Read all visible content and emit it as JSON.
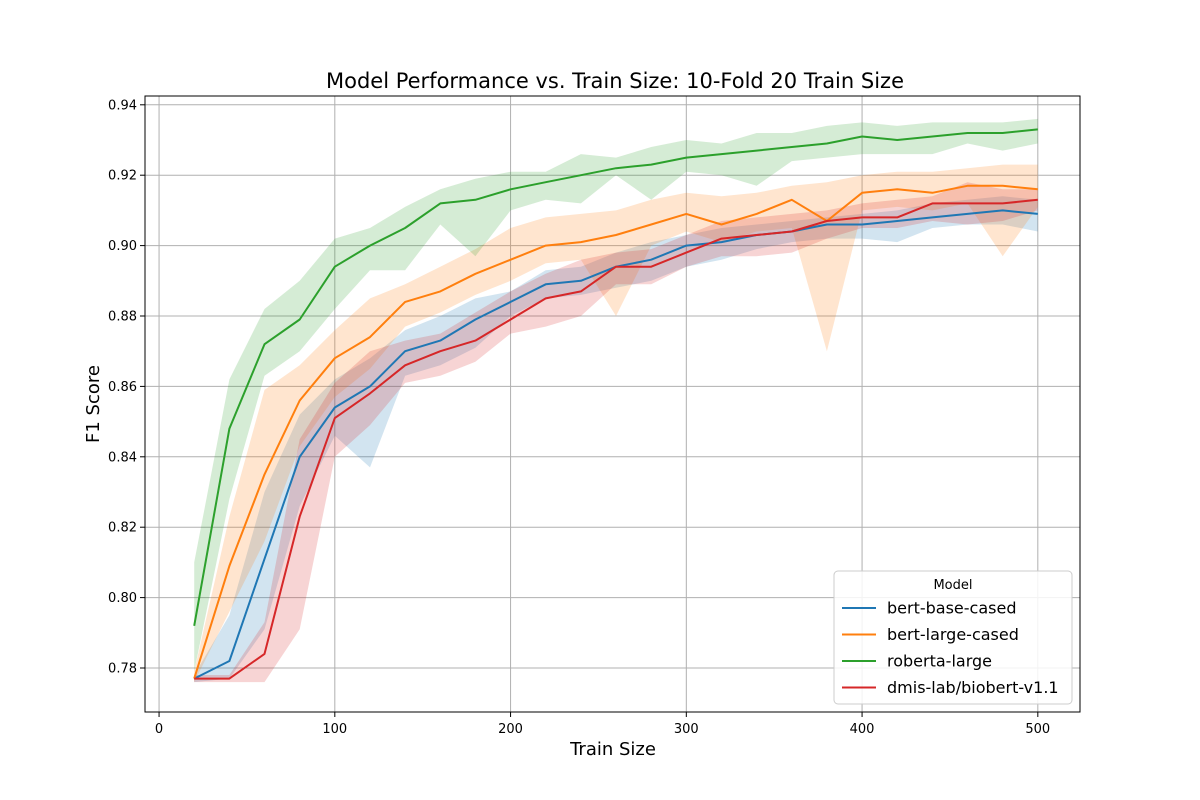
{
  "chart_data": {
    "type": "line",
    "title": "Model Performance vs. Train Size: 10-Fold 20 Train Size",
    "xlabel": "Train Size",
    "ylabel": "F1 Score",
    "xlim": [
      -8,
      524
    ],
    "ylim": [
      0.7675,
      0.9425
    ],
    "xticks": [
      0,
      100,
      200,
      300,
      400,
      500
    ],
    "yticks": [
      0.78,
      0.8,
      0.82,
      0.84,
      0.86,
      0.88,
      0.9,
      0.92,
      0.94
    ],
    "ytick_labels": [
      "0.78",
      "0.80",
      "0.82",
      "0.84",
      "0.86",
      "0.88",
      "0.90",
      "0.92",
      "0.94"
    ],
    "grid": true,
    "legend": {
      "title": "Model",
      "placement": "bottom-right"
    },
    "x": [
      20,
      40,
      60,
      80,
      100,
      120,
      140,
      160,
      180,
      200,
      220,
      240,
      260,
      280,
      300,
      320,
      340,
      360,
      380,
      400,
      420,
      440,
      460,
      480,
      500
    ],
    "series": [
      {
        "name": "bert-base-cased",
        "color": "#1f77b4",
        "values": [
          0.777,
          0.782,
          0.811,
          0.84,
          0.854,
          0.86,
          0.87,
          0.873,
          0.879,
          0.884,
          0.889,
          0.89,
          0.894,
          0.896,
          0.9,
          0.901,
          0.903,
          0.904,
          0.906,
          0.906,
          0.907,
          0.908,
          0.909,
          0.91,
          0.909
        ],
        "lower": [
          0.776,
          0.777,
          0.791,
          0.826,
          0.846,
          0.837,
          0.863,
          0.866,
          0.871,
          0.88,
          0.885,
          0.886,
          0.888,
          0.89,
          0.894,
          0.896,
          0.899,
          0.901,
          0.902,
          0.902,
          0.901,
          0.905,
          0.906,
          0.906,
          0.904
        ],
        "upper": [
          0.778,
          0.795,
          0.83,
          0.852,
          0.862,
          0.868,
          0.876,
          0.88,
          0.885,
          0.887,
          0.893,
          0.894,
          0.898,
          0.901,
          0.903,
          0.905,
          0.906,
          0.907,
          0.908,
          0.909,
          0.91,
          0.912,
          0.913,
          0.914,
          0.913
        ]
      },
      {
        "name": "bert-large-cased",
        "color": "#ff7f0e",
        "values": [
          0.777,
          0.809,
          0.835,
          0.856,
          0.868,
          0.874,
          0.884,
          0.887,
          0.892,
          0.896,
          0.9,
          0.901,
          0.903,
          0.906,
          0.909,
          0.906,
          0.909,
          0.913,
          0.907,
          0.915,
          0.916,
          0.915,
          0.917,
          0.917,
          0.916
        ],
        "lower": [
          0.776,
          0.796,
          0.816,
          0.843,
          0.857,
          0.865,
          0.877,
          0.881,
          0.886,
          0.89,
          0.895,
          0.896,
          0.88,
          0.9,
          0.904,
          0.901,
          0.904,
          0.905,
          0.87,
          0.91,
          0.911,
          0.91,
          0.912,
          0.897,
          0.911
        ],
        "upper": [
          0.779,
          0.823,
          0.859,
          0.866,
          0.876,
          0.885,
          0.889,
          0.894,
          0.899,
          0.905,
          0.908,
          0.909,
          0.91,
          0.913,
          0.915,
          0.914,
          0.915,
          0.917,
          0.918,
          0.92,
          0.921,
          0.921,
          0.922,
          0.923,
          0.923
        ]
      },
      {
        "name": "roberta-large",
        "color": "#2ca02c",
        "values": [
          0.792,
          0.848,
          0.872,
          0.879,
          0.894,
          0.9,
          0.905,
          0.912,
          0.913,
          0.916,
          0.918,
          0.92,
          0.922,
          0.923,
          0.925,
          0.926,
          0.927,
          0.928,
          0.929,
          0.931,
          0.93,
          0.931,
          0.932,
          0.932,
          0.933
        ],
        "lower": [
          0.779,
          0.828,
          0.863,
          0.87,
          0.882,
          0.893,
          0.893,
          0.906,
          0.897,
          0.91,
          0.913,
          0.912,
          0.92,
          0.913,
          0.921,
          0.92,
          0.917,
          0.924,
          0.925,
          0.926,
          0.926,
          0.926,
          0.929,
          0.927,
          0.929
        ],
        "upper": [
          0.81,
          0.862,
          0.882,
          0.89,
          0.902,
          0.905,
          0.911,
          0.916,
          0.919,
          0.921,
          0.921,
          0.926,
          0.925,
          0.928,
          0.93,
          0.929,
          0.932,
          0.932,
          0.934,
          0.935,
          0.934,
          0.935,
          0.935,
          0.935,
          0.936
        ]
      },
      {
        "name": "dmis-lab/biobert-v1.1",
        "color": "#d62728",
        "values": [
          0.777,
          0.777,
          0.784,
          0.823,
          0.851,
          0.858,
          0.866,
          0.87,
          0.873,
          0.879,
          0.885,
          0.887,
          0.894,
          0.894,
          0.898,
          0.902,
          0.903,
          0.904,
          0.907,
          0.908,
          0.908,
          0.912,
          0.912,
          0.912,
          0.913
        ],
        "lower": [
          0.776,
          0.776,
          0.776,
          0.791,
          0.84,
          0.849,
          0.861,
          0.863,
          0.867,
          0.875,
          0.877,
          0.88,
          0.889,
          0.889,
          0.894,
          0.897,
          0.897,
          0.898,
          0.902,
          0.905,
          0.905,
          0.907,
          0.906,
          0.907,
          0.91
        ],
        "upper": [
          0.778,
          0.778,
          0.793,
          0.845,
          0.861,
          0.87,
          0.873,
          0.875,
          0.881,
          0.887,
          0.892,
          0.896,
          0.898,
          0.899,
          0.903,
          0.907,
          0.908,
          0.909,
          0.91,
          0.912,
          0.913,
          0.914,
          0.918,
          0.916,
          0.916
        ]
      }
    ]
  }
}
